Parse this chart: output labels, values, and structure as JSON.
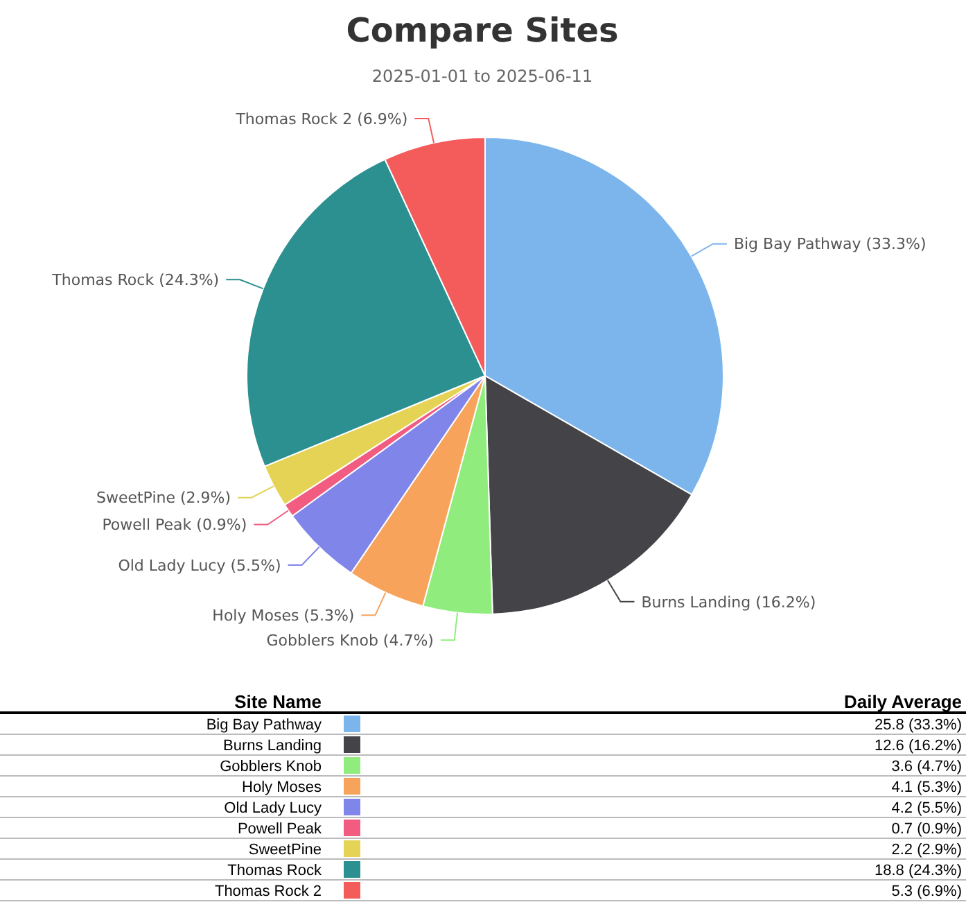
{
  "chart_data": {
    "type": "pie",
    "title": "Compare Sites",
    "subtitle": "2025-01-01 to 2025-06-11",
    "legend_title": "Site Name",
    "legend": "bottom",
    "categories": [
      "Big Bay Pathway",
      "Burns Landing",
      "Gobblers Knob",
      "Holy Moses",
      "Old Lady Lucy",
      "Powell Peak",
      "SweetPine",
      "Thomas Rock",
      "Thomas Rock 2"
    ],
    "values": [
      33.3,
      16.2,
      4.7,
      5.3,
      5.5,
      0.9,
      2.9,
      24.3,
      6.9
    ],
    "value_labels": [
      "(33.3%)",
      "(16.2%)",
      "(4.7%)",
      "(5.3%)",
      "(5.5%)",
      "(0.9%)",
      "(2.9%)",
      "(24.3%)",
      "(6.9%)"
    ],
    "colors": [
      "#7cb5ec",
      "#434348",
      "#90ed7d",
      "#f7a35c",
      "#8085e9",
      "#f15c80",
      "#e4d354",
      "#2b908f",
      "#f45b5b"
    ],
    "annotations": [
      "Daily Average",
      "25.8 (33.3%)",
      "12.6 (16.2%)",
      "3.6 (4.7%)",
      "4.1 (5.3%)",
      "4.2 (5.5%)",
      "0.7 (0.9%)",
      "2.2 (2.9%)",
      "18.8 (24.3%)",
      "5.3 (6.9%)"
    ]
  }
}
